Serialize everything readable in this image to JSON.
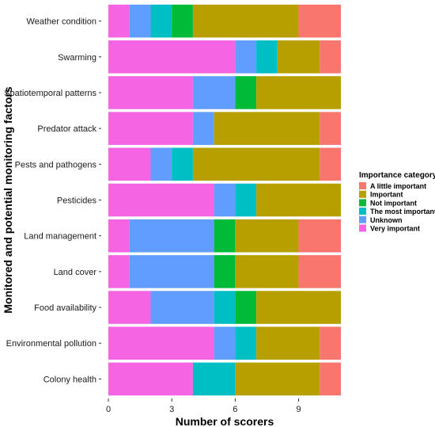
{
  "chart_data": {
    "type": "bar",
    "orientation": "horizontal",
    "stacked": true,
    "xlabel": "Number of scorers",
    "ylabel": "Monitored and potential monitoring factors",
    "xlim": [
      0,
      11
    ],
    "xticks": [
      0,
      3,
      6,
      9
    ],
    "categories": [
      "Weather condition",
      "Swarming",
      "Spatiotemporal patterns",
      "Predator attack",
      "Pests and pathogens",
      "Pesticides",
      "Land management",
      "Land cover",
      "Food availability",
      "Environmental pollution",
      "Colony health"
    ],
    "legend": {
      "title": "Importance category",
      "position": "right",
      "order": [
        "A little important",
        "Important",
        "Not important",
        "The most important",
        "Unknown",
        "Very important"
      ]
    },
    "stack_order": [
      "Very important",
      "Unknown",
      "The most important",
      "Not important",
      "Important",
      "A little important"
    ],
    "series": [
      {
        "name": "Very important",
        "color": "#F564E3",
        "values": [
          1,
          6,
          4,
          4,
          2,
          5,
          1,
          1,
          2,
          5,
          4
        ]
      },
      {
        "name": "Unknown",
        "color": "#619CFF",
        "values": [
          1,
          1,
          2,
          1,
          1,
          1,
          4,
          4,
          3,
          1,
          0
        ]
      },
      {
        "name": "The most important",
        "color": "#00BFC4",
        "values": [
          1,
          1,
          0,
          0,
          1,
          1,
          0,
          0,
          1,
          1,
          2
        ]
      },
      {
        "name": "Not important",
        "color": "#00BA38",
        "values": [
          1,
          0,
          1,
          0,
          0,
          0,
          1,
          1,
          1,
          0,
          0
        ]
      },
      {
        "name": "Important",
        "color": "#B79F00",
        "values": [
          5,
          2,
          4,
          5,
          6,
          4,
          3,
          3,
          4,
          3,
          4
        ]
      },
      {
        "name": "A little important",
        "color": "#F8766D",
        "values": [
          2,
          1,
          0,
          1,
          1,
          0,
          2,
          2,
          0,
          1,
          1
        ]
      }
    ],
    "grid": false
  }
}
